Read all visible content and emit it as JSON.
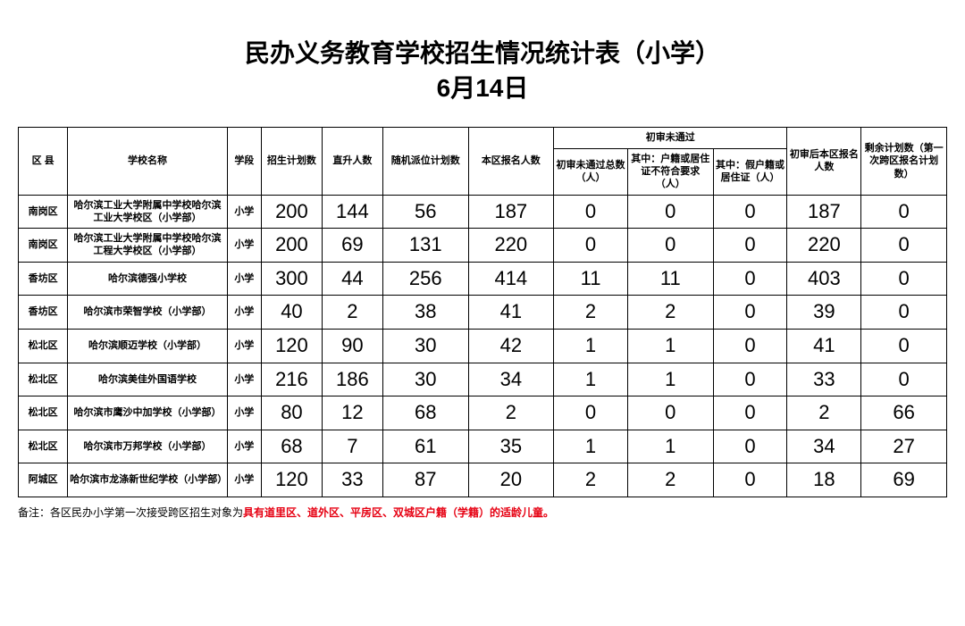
{
  "title_line1": "民办义务教育学校招生情况统计表（小学）",
  "title_line2": "6月14日",
  "headers": {
    "district": "区 县",
    "school": "学校名称",
    "stage": "学段",
    "plan": "招生计划数",
    "direct": "直升人数",
    "random": "随机派位计划数",
    "local": "本区报名人数",
    "fail_group": "初审未通过",
    "fail_total": "初审未通过总数（人）",
    "fail_hukou": "其中：户籍或居住证不符合要求（人）",
    "fail_fake": "其中：假户籍或居住证（人）",
    "after": "初审后本区报名人数",
    "remain": "剩余计划数（第一次跨区报名计划数）"
  },
  "rows": [
    {
      "district": "南岗区",
      "school": "哈尔滨工业大学附属中学校哈尔滨工业大学校区（小学部）",
      "stage": "小学",
      "plan": "200",
      "direct": "144",
      "random": "56",
      "local": "187",
      "fail_total": "0",
      "fail_hukou": "0",
      "fail_fake": "0",
      "after": "187",
      "remain": "0"
    },
    {
      "district": "南岗区",
      "school": "哈尔滨工业大学附属中学校哈尔滨工程大学校区（小学部）",
      "stage": "小学",
      "plan": "200",
      "direct": "69",
      "random": "131",
      "local": "220",
      "fail_total": "0",
      "fail_hukou": "0",
      "fail_fake": "0",
      "after": "220",
      "remain": "0"
    },
    {
      "district": "香坊区",
      "school": "哈尔滨德强小学校",
      "stage": "小学",
      "plan": "300",
      "direct": "44",
      "random": "256",
      "local": "414",
      "fail_total": "11",
      "fail_hukou": "11",
      "fail_fake": "0",
      "after": "403",
      "remain": "0"
    },
    {
      "district": "香坊区",
      "school": "哈尔滨市荣智学校（小学部）",
      "stage": "小学",
      "plan": "40",
      "direct": "2",
      "random": "38",
      "local": "41",
      "fail_total": "2",
      "fail_hukou": "2",
      "fail_fake": "0",
      "after": "39",
      "remain": "0"
    },
    {
      "district": "松北区",
      "school": "哈尔滨顺迈学校（小学部）",
      "stage": "小学",
      "plan": "120",
      "direct": "90",
      "random": "30",
      "local": "42",
      "fail_total": "1",
      "fail_hukou": "1",
      "fail_fake": "0",
      "after": "41",
      "remain": "0"
    },
    {
      "district": "松北区",
      "school": "哈尔滨美佳外国语学校",
      "stage": "小学",
      "plan": "216",
      "direct": "186",
      "random": "30",
      "local": "34",
      "fail_total": "1",
      "fail_hukou": "1",
      "fail_fake": "0",
      "after": "33",
      "remain": "0"
    },
    {
      "district": "松北区",
      "school": "哈尔滨市鹰沙中加学校（小学部）",
      "stage": "小学",
      "plan": "80",
      "direct": "12",
      "random": "68",
      "local": "2",
      "fail_total": "0",
      "fail_hukou": "0",
      "fail_fake": "0",
      "after": "2",
      "remain": "66"
    },
    {
      "district": "松北区",
      "school": "哈尔滨市万邦学校（小学部）",
      "stage": "小学",
      "plan": "68",
      "direct": "7",
      "random": "61",
      "local": "35",
      "fail_total": "1",
      "fail_hukou": "1",
      "fail_fake": "0",
      "after": "34",
      "remain": "27"
    },
    {
      "district": "阿城区",
      "school": "哈尔滨市龙涤新世纪学校（小学部）",
      "stage": "小学",
      "plan": "120",
      "direct": "33",
      "random": "87",
      "local": "20",
      "fail_total": "2",
      "fail_hukou": "2",
      "fail_fake": "0",
      "after": "18",
      "remain": "69"
    }
  ],
  "footnote_prefix": "备注：各区民办小学第一次接受跨区招生对象为",
  "footnote_red": "具有道里区、道外区、平房区、双城区户籍（学籍）的适龄儿童。"
}
